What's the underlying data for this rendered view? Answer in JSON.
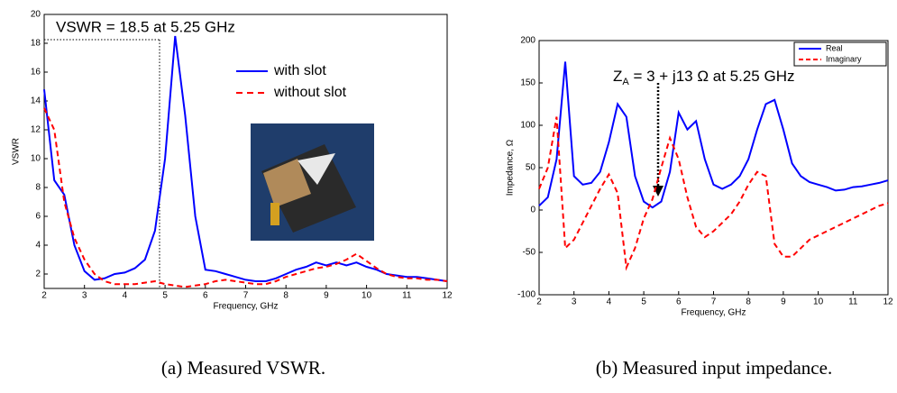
{
  "chart_data": [
    {
      "type": "line",
      "annotation": "VSWR = 18.5 at 5.25 GHz",
      "xlabel": "Frequency, GHz",
      "ylabel": "VSWR",
      "caption": "(a) Measured VSWR.",
      "x": [
        2,
        2.25,
        2.5,
        2.75,
        3,
        3.25,
        3.5,
        3.75,
        4,
        4.25,
        4.5,
        4.75,
        5,
        5.25,
        5.5,
        5.75,
        6,
        6.25,
        6.5,
        6.75,
        7,
        7.25,
        7.5,
        7.75,
        8,
        8.25,
        8.5,
        8.75,
        9,
        9.25,
        9.5,
        9.75,
        10,
        10.25,
        10.5,
        10.75,
        11,
        11.25,
        11.5,
        11.75,
        12
      ],
      "series": [
        {
          "name": "with slot",
          "color": "#0000ff",
          "dash": false,
          "values": [
            14.8,
            8.5,
            7.5,
            4,
            2.2,
            1.6,
            1.7,
            2,
            2.1,
            2.4,
            3,
            5,
            10,
            18.5,
            13,
            6,
            2.3,
            2.2,
            2,
            1.8,
            1.6,
            1.5,
            1.5,
            1.7,
            2,
            2.3,
            2.5,
            2.8,
            2.6,
            2.8,
            2.6,
            2.8,
            2.5,
            2.3,
            2,
            1.9,
            1.8,
            1.8,
            1.7,
            1.6,
            1.5
          ]
        },
        {
          "name": "without slot",
          "color": "#ff0000",
          "dash": true,
          "values": [
            13.5,
            12,
            7,
            4.5,
            3,
            2,
            1.5,
            1.3,
            1.3,
            1.3,
            1.4,
            1.5,
            1.3,
            1.2,
            1.1,
            1.2,
            1.3,
            1.5,
            1.6,
            1.5,
            1.4,
            1.3,
            1.3,
            1.5,
            1.8,
            2,
            2.2,
            2.4,
            2.5,
            2.7,
            3,
            3.4,
            2.9,
            2.4,
            2,
            1.8,
            1.7,
            1.7,
            1.6,
            1.6,
            1.5
          ]
        }
      ],
      "xlim": [
        2,
        12
      ],
      "xticks": [
        2,
        3,
        4,
        5,
        6,
        7,
        8,
        9,
        10,
        11,
        12
      ],
      "ylim": [
        1,
        20
      ],
      "yticks": [
        2,
        4,
        6,
        8,
        10,
        12,
        14,
        16,
        18,
        20
      ],
      "legend": "inside"
    },
    {
      "type": "line",
      "annotation_main": "Z",
      "annotation_sub": "A",
      "annotation_rest": " = 3 + j13 Ω at 5.25 GHz",
      "xlabel": "Frequency, GHz",
      "ylabel": "Impedance, Ω",
      "caption": "(b) Measured input impedance.",
      "x": [
        2,
        2.25,
        2.5,
        2.75,
        3,
        3.25,
        3.5,
        3.75,
        4,
        4.25,
        4.5,
        4.75,
        5,
        5.25,
        5.5,
        5.75,
        6,
        6.25,
        6.5,
        6.75,
        7,
        7.25,
        7.5,
        7.75,
        8,
        8.25,
        8.5,
        8.75,
        9,
        9.25,
        9.5,
        9.75,
        10,
        10.25,
        10.5,
        10.75,
        11,
        11.25,
        11.5,
        11.75,
        12
      ],
      "series": [
        {
          "name": "Real",
          "color": "#0000ff",
          "dash": false,
          "values": [
            5,
            15,
            60,
            175,
            40,
            30,
            32,
            45,
            80,
            125,
            110,
            40,
            10,
            3,
            10,
            45,
            115,
            95,
            105,
            60,
            30,
            25,
            30,
            40,
            60,
            95,
            125,
            130,
            95,
            55,
            40,
            33,
            30,
            27,
            23,
            24,
            27,
            28,
            30,
            32,
            35
          ]
        },
        {
          "name": "Imaginary",
          "color": "#ff0000",
          "dash": true,
          "values": [
            25,
            50,
            110,
            -45,
            -35,
            -15,
            5,
            25,
            42,
            20,
            -68,
            -45,
            -10,
            13,
            50,
            85,
            60,
            15,
            -20,
            -32,
            -25,
            -15,
            -5,
            10,
            30,
            45,
            40,
            -40,
            -55,
            -55,
            -45,
            -35,
            -30,
            -25,
            -20,
            -15,
            -10,
            -5,
            0,
            5,
            8
          ]
        }
      ],
      "xlim": [
        2,
        12
      ],
      "xticks": [
        2,
        3,
        4,
        5,
        6,
        7,
        8,
        9,
        10,
        11,
        12
      ],
      "ylim": [
        -100,
        200
      ],
      "yticks": [
        -100,
        -50,
        0,
        50,
        100,
        150,
        200
      ],
      "legend": "upper right"
    }
  ]
}
